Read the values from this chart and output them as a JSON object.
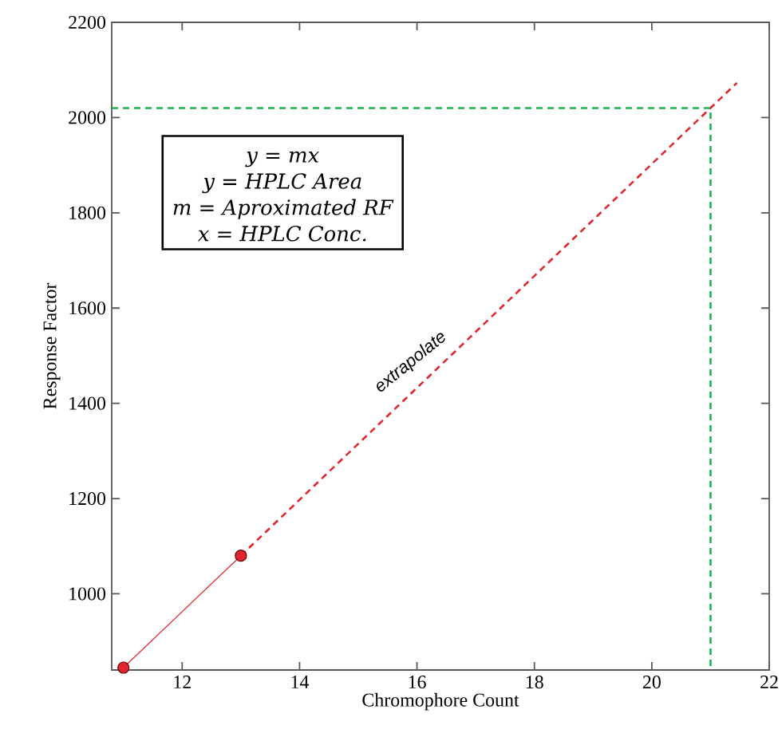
{
  "chart_data": {
    "type": "line",
    "xlabel": "Chromophore Count",
    "ylabel": "Response Factor",
    "xlim": [
      10.8,
      22
    ],
    "ylim": [
      840,
      2200
    ],
    "xticks": [
      12,
      14,
      16,
      18,
      20,
      22
    ],
    "yticks": [
      1000,
      1200,
      1400,
      1600,
      1800,
      2000,
      2200
    ],
    "grid": false,
    "series": [
      {
        "color": "#e0262f",
        "x": [
          11,
          13
        ],
        "values": [
          845,
          1080
        ],
        "marker": "circle",
        "line_style": "solid"
      },
      {
        "color": "#e0262f",
        "x": [
          13,
          21.45
        ],
        "values": [
          1080,
          2073
        ],
        "marker": "none",
        "line_style": "dashed"
      },
      {
        "color": "#22b050",
        "x": [
          10.8,
          21,
          21
        ],
        "values": [
          2020,
          2020,
          840
        ],
        "marker": "none",
        "line_style": "dashed"
      }
    ],
    "annotations": [
      "y = mx",
      "y = HPLC Area",
      "m = Aproximated RF",
      "x = HPLC Conc.",
      "extrapolate"
    ]
  }
}
